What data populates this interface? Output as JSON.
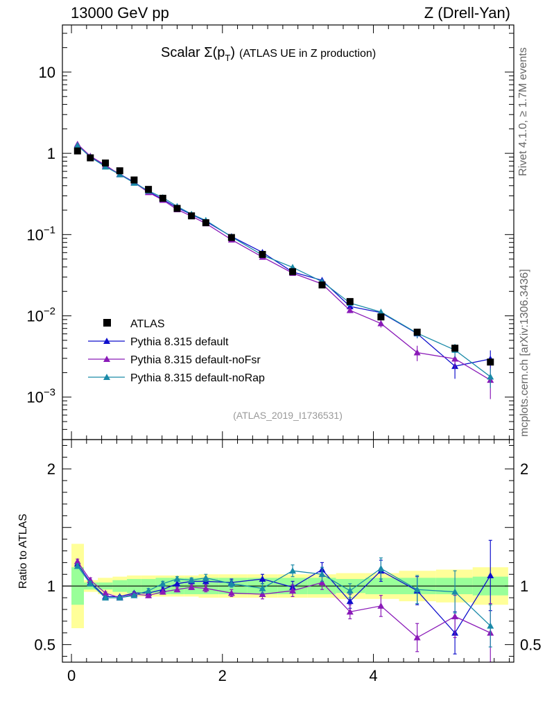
{
  "header": {
    "left": "13000 GeV pp",
    "right": "Z (Drell-Yan)"
  },
  "side": {
    "rivet": "Rivet 4.1.0, ≥ 1.7M events",
    "mcplots": "mcplots.cern.ch [arXiv:1306.3436]"
  },
  "chart_data": {
    "type": "line",
    "title": "Scalar Σ(p_T) (ATLAS UE in Z production)",
    "title_parts": {
      "main": "Scalar Σ(p",
      "sub": "T",
      "close": ")",
      "rest": "(ATLAS UE in Z production)"
    },
    "analysis_tag": "(ATLAS_2019_I1736531)",
    "x": [
      0.08,
      0.25,
      0.45,
      0.64,
      0.83,
      1.02,
      1.21,
      1.4,
      1.59,
      1.78,
      2.12,
      2.53,
      2.93,
      3.32,
      3.69,
      4.1,
      4.58,
      5.08,
      5.55
    ],
    "xlim": [
      -0.12,
      5.86
    ],
    "xticks": [
      0,
      2,
      4
    ],
    "xtick_labels": [
      "0",
      "2",
      "4"
    ],
    "main": {
      "yscale": "log",
      "ylim": [
        0.0003,
        38
      ],
      "yticks": [
        10,
        1,
        0.1,
        0.01,
        0.001
      ],
      "ytick_labels": [
        {
          "base": "10",
          "exp": ""
        },
        {
          "base": "1",
          "exp": ""
        },
        {
          "base": "10",
          "exp": "−1"
        },
        {
          "base": "10",
          "exp": "−2"
        },
        {
          "base": "10",
          "exp": "−3"
        }
      ]
    },
    "ratio": {
      "ylabel": "Ratio to ATLAS",
      "ylim": [
        0.35,
        2.25
      ],
      "yticks": [
        0.5,
        1,
        2
      ],
      "ytick_labels": [
        "0.5",
        "1",
        "2"
      ]
    },
    "data": {
      "name": "ATLAS",
      "color": "#000000",
      "values": [
        1.07,
        0.88,
        0.76,
        0.61,
        0.47,
        0.36,
        0.28,
        0.21,
        0.17,
        0.14,
        0.092,
        0.057,
        0.035,
        0.024,
        0.015,
        0.0097,
        0.0063,
        0.004,
        0.0027
      ],
      "band_inner": [
        0.16,
        0.03,
        0.03,
        0.05,
        0.06,
        0.06,
        0.07,
        0.07,
        0.07,
        0.07,
        0.07,
        0.07,
        0.07,
        0.07,
        0.06,
        0.07,
        0.07,
        0.07,
        0.08
      ],
      "band_outer": [
        0.36,
        0.05,
        0.07,
        0.08,
        0.09,
        0.09,
        0.09,
        0.09,
        0.09,
        0.1,
        0.1,
        0.1,
        0.1,
        0.1,
        0.11,
        0.11,
        0.13,
        0.14,
        0.16
      ]
    },
    "series": [
      {
        "name": "Pythia 8.315 default",
        "color": "#0f0fcc",
        "ratio": [
          1.19,
          1.03,
          0.91,
          0.91,
          0.94,
          0.94,
          0.97,
          1.02,
          1.04,
          1.04,
          1.03,
          1.06,
          0.99,
          1.14,
          0.87,
          1.13,
          0.96,
          0.6,
          1.09
        ],
        "ratio_err": [
          0.02,
          0.02,
          0.01,
          0.01,
          0.01,
          0.02,
          0.02,
          0.02,
          0.02,
          0.03,
          0.03,
          0.04,
          0.05,
          0.06,
          0.06,
          0.09,
          0.12,
          0.18,
          0.3
        ]
      },
      {
        "name": "Pythia 8.315 default-noFsr",
        "color": "#8a1ab8",
        "ratio": [
          1.21,
          1.05,
          0.94,
          0.9,
          0.93,
          0.92,
          0.95,
          0.97,
          0.99,
          0.98,
          0.94,
          0.93,
          0.96,
          1.03,
          0.78,
          0.83,
          0.56,
          0.74,
          0.6
        ],
        "ratio_err": [
          0.02,
          0.02,
          0.01,
          0.01,
          0.01,
          0.02,
          0.02,
          0.02,
          0.02,
          0.03,
          0.03,
          0.04,
          0.05,
          0.06,
          0.06,
          0.09,
          0.12,
          0.18,
          0.25
        ]
      },
      {
        "name": "Pythia 8.315 default-noRap",
        "color": "#1a8aa8",
        "ratio": [
          1.17,
          1.02,
          0.9,
          0.9,
          0.92,
          0.96,
          1.02,
          1.06,
          1.05,
          1.07,
          1.02,
          0.98,
          1.13,
          1.1,
          0.96,
          1.15,
          0.97,
          0.95,
          0.66
        ],
        "ratio_err": [
          0.02,
          0.02,
          0.01,
          0.01,
          0.01,
          0.02,
          0.02,
          0.02,
          0.02,
          0.03,
          0.03,
          0.04,
          0.05,
          0.06,
          0.06,
          0.09,
          0.12,
          0.18,
          0.18
        ]
      }
    ]
  }
}
